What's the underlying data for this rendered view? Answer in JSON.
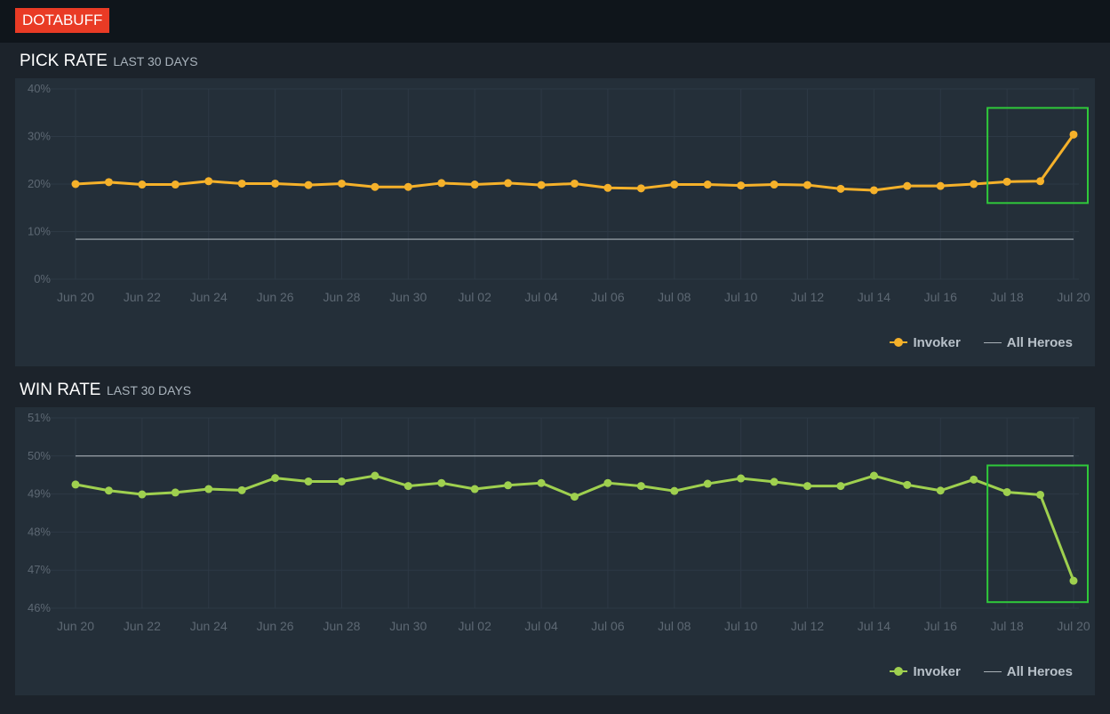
{
  "header": {
    "logo_text": "DOTABUFF"
  },
  "sections": [
    {
      "title": "PICK RATE",
      "subtitle": "LAST 30 DAYS"
    },
    {
      "title": "WIN RATE",
      "subtitle": "LAST 30 DAYS"
    }
  ],
  "legend": {
    "hero": "Invoker",
    "baseline": "All Heroes"
  },
  "chart_data": [
    {
      "type": "line",
      "title": "PICK RATE",
      "subtitle": "LAST 30 DAYS",
      "x": [
        "Jun 20",
        "Jun 21",
        "Jun 22",
        "Jun 23",
        "Jun 24",
        "Jun 25",
        "Jun 26",
        "Jun 27",
        "Jun 28",
        "Jun 29",
        "Jun 30",
        "Jul 01",
        "Jul 02",
        "Jul 03",
        "Jul 04",
        "Jul 05",
        "Jul 06",
        "Jul 07",
        "Jul 08",
        "Jul 09",
        "Jul 10",
        "Jul 11",
        "Jul 12",
        "Jul 13",
        "Jul 14",
        "Jul 15",
        "Jul 16",
        "Jul 17",
        "Jul 18",
        "Jul 19",
        "Jul 20"
      ],
      "x_tick_labels": [
        "Jun 20",
        "Jun 22",
        "Jun 24",
        "Jun 26",
        "Jun 28",
        "Jun 30",
        "Jul 02",
        "Jul 04",
        "Jul 06",
        "Jul 08",
        "Jul 10",
        "Jul 12",
        "Jul 14",
        "Jul 16",
        "Jul 18",
        "Jul 20"
      ],
      "y_tick_labels": [
        "0%",
        "10%",
        "20%",
        "30%",
        "40%"
      ],
      "ylim": [
        0,
        40
      ],
      "grid": true,
      "legend_position": "bottom-right",
      "series": [
        {
          "name": "Invoker",
          "color": "#f5b12a",
          "markers": true,
          "values": [
            20.0,
            20.4,
            19.9,
            19.9,
            20.6,
            20.1,
            20.1,
            19.8,
            20.1,
            19.4,
            19.4,
            20.2,
            19.9,
            20.2,
            19.8,
            20.1,
            19.2,
            19.1,
            19.9,
            19.9,
            19.7,
            19.9,
            19.8,
            19.0,
            18.7,
            19.6,
            19.6,
            20.0,
            20.5,
            20.6,
            30.4
          ]
        },
        {
          "name": "All Heroes",
          "color": "#a8b0b7",
          "markers": false,
          "values": [
            8.4,
            8.4,
            8.4,
            8.4,
            8.4,
            8.4,
            8.4,
            8.4,
            8.4,
            8.4,
            8.4,
            8.4,
            8.4,
            8.4,
            8.4,
            8.4,
            8.4,
            8.4,
            8.4,
            8.4,
            8.4,
            8.4,
            8.4,
            8.4,
            8.4,
            8.4,
            8.4,
            8.4,
            8.4,
            8.4,
            8.4
          ]
        }
      ],
      "highlight": {
        "from": "Jul 18",
        "to": "Jul 20",
        "color": "#2fc83a"
      }
    },
    {
      "type": "line",
      "title": "WIN RATE",
      "subtitle": "LAST 30 DAYS",
      "x": [
        "Jun 20",
        "Jun 21",
        "Jun 22",
        "Jun 23",
        "Jun 24",
        "Jun 25",
        "Jun 26",
        "Jun 27",
        "Jun 28",
        "Jun 29",
        "Jun 30",
        "Jul 01",
        "Jul 02",
        "Jul 03",
        "Jul 04",
        "Jul 05",
        "Jul 06",
        "Jul 07",
        "Jul 08",
        "Jul 09",
        "Jul 10",
        "Jul 11",
        "Jul 12",
        "Jul 13",
        "Jul 14",
        "Jul 15",
        "Jul 16",
        "Jul 17",
        "Jul 18",
        "Jul 19",
        "Jul 20"
      ],
      "x_tick_labels": [
        "Jun 20",
        "Jun 22",
        "Jun 24",
        "Jun 26",
        "Jun 28",
        "Jun 30",
        "Jul 02",
        "Jul 04",
        "Jul 06",
        "Jul 08",
        "Jul 10",
        "Jul 12",
        "Jul 14",
        "Jul 16",
        "Jul 18",
        "Jul 20"
      ],
      "y_tick_labels": [
        "46%",
        "47%",
        "48%",
        "49%",
        "50%",
        "51%"
      ],
      "ylim": [
        46,
        51
      ],
      "grid": true,
      "legend_position": "bottom-right",
      "series": [
        {
          "name": "Invoker",
          "color": "#9fd04f",
          "markers": true,
          "values": [
            49.25,
            49.09,
            48.99,
            49.04,
            49.13,
            49.1,
            49.42,
            49.33,
            49.33,
            49.48,
            49.21,
            49.29,
            49.13,
            49.23,
            49.29,
            48.93,
            49.29,
            49.21,
            49.08,
            49.27,
            49.41,
            49.32,
            49.21,
            49.21,
            49.48,
            49.24,
            49.09,
            49.38,
            49.05,
            48.98,
            46.72
          ]
        },
        {
          "name": "All Heroes",
          "color": "#a8b0b7",
          "markers": false,
          "values": [
            50.0,
            50.0,
            50.0,
            50.0,
            50.0,
            50.0,
            50.0,
            50.0,
            50.0,
            50.0,
            50.0,
            50.0,
            50.0,
            50.0,
            50.0,
            50.0,
            50.0,
            50.0,
            50.0,
            50.0,
            50.0,
            50.0,
            50.0,
            50.0,
            50.0,
            50.0,
            50.0,
            50.0,
            50.0,
            50.0,
            50.0
          ]
        }
      ],
      "highlight": {
        "from": "Jul 18",
        "to": "Jul 20",
        "color": "#2fc83a"
      }
    }
  ]
}
